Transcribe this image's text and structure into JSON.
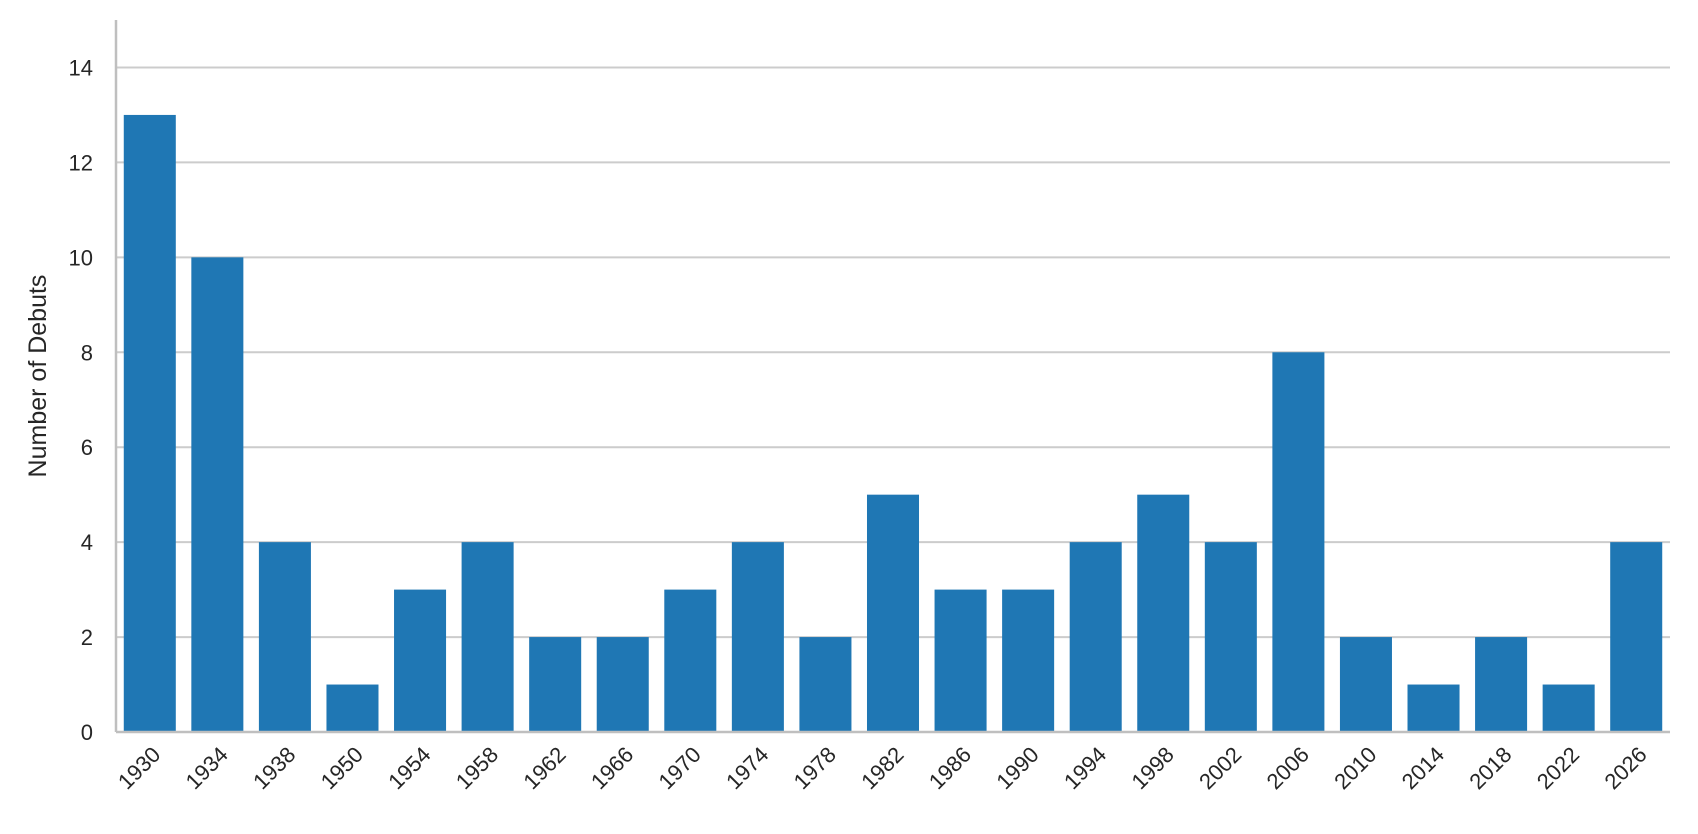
{
  "chart_data": {
    "type": "bar",
    "categories": [
      "1930",
      "1934",
      "1938",
      "1950",
      "1954",
      "1958",
      "1962",
      "1966",
      "1970",
      "1974",
      "1978",
      "1982",
      "1986",
      "1990",
      "1994",
      "1998",
      "2002",
      "2006",
      "2010",
      "2014",
      "2018",
      "2022",
      "2026"
    ],
    "values": [
      13,
      10,
      4,
      1,
      3,
      4,
      2,
      2,
      3,
      4,
      2,
      5,
      3,
      3,
      4,
      5,
      4,
      8,
      2,
      1,
      2,
      1,
      4
    ],
    "title": "",
    "xlabel": "",
    "ylabel": "Number of Debuts",
    "ylim": [
      0,
      15
    ],
    "yticks": [
      0,
      2,
      4,
      6,
      8,
      10,
      12,
      14
    ],
    "grid": "horizontal",
    "bar_color": "#1f77b4",
    "grid_color": "#cccccc",
    "legend": "none"
  }
}
